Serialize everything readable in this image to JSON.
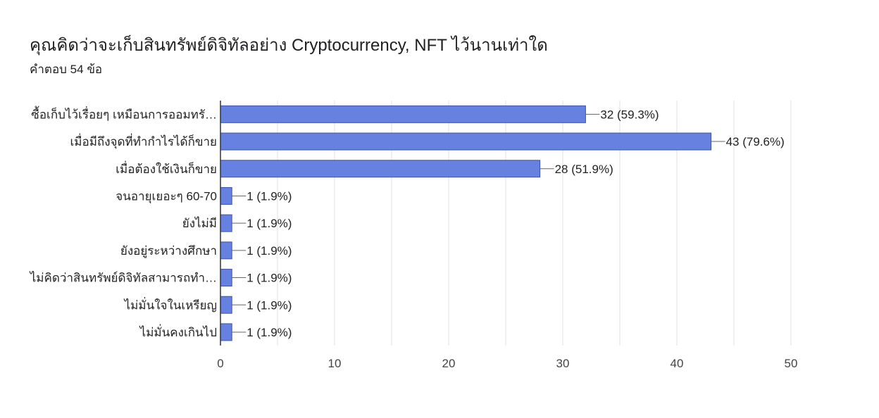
{
  "question": {
    "title": "คุณคิดว่าจะเก็บสินทรัพย์ดิจิทัลอย่าง Cryptocurrency, NFT ไว้นานเท่าใด",
    "response_count": "คำตอบ 54 ข้อ"
  },
  "colors": {
    "bar": "#6681e0",
    "bar_border": "#3b52b4",
    "grid": "#e0e0e0",
    "axis": "#333333"
  },
  "chart_data": {
    "type": "bar",
    "orientation": "horizontal",
    "title": "คุณคิดว่าจะเก็บสินทรัพย์ดิจิทัลอย่าง Cryptocurrency, NFT ไว้นานเท่าใด",
    "categories": [
      "ซื้อเก็บไว้เรื่อยๆ เหมือนการออมทรั…",
      "เมื่อมีถึงจุดที่ทำกำไรได้ก็ขาย",
      "เมื่อต้องใช้เงินก็ขาย",
      "จนอายุเยอะๆ 60-70",
      "ยังไม่มี",
      "ยังอยู่ระหว่างศึกษา",
      "ไม่คิดว่าสินทรัพย์ดิจิทัลสามารถทำ…",
      "ไม่มั่นใจในเหรียญ",
      "ไม่มั่นคงเกินไป"
    ],
    "values": [
      32,
      43,
      28,
      1,
      1,
      1,
      1,
      1,
      1
    ],
    "value_labels": [
      "32 (59.3%)",
      "43 (79.6%)",
      "28 (51.9%)",
      "1 (1.9%)",
      "1 (1.9%)",
      "1 (1.9%)",
      "1 (1.9%)",
      "1 (1.9%)",
      "1 (1.9%)"
    ],
    "xlim": [
      0,
      50
    ],
    "xticks": [
      0,
      10,
      20,
      30,
      40,
      50
    ],
    "xtick_labels": [
      "0",
      "10",
      "20",
      "30",
      "40",
      "50"
    ],
    "grid": true,
    "legend": false
  }
}
